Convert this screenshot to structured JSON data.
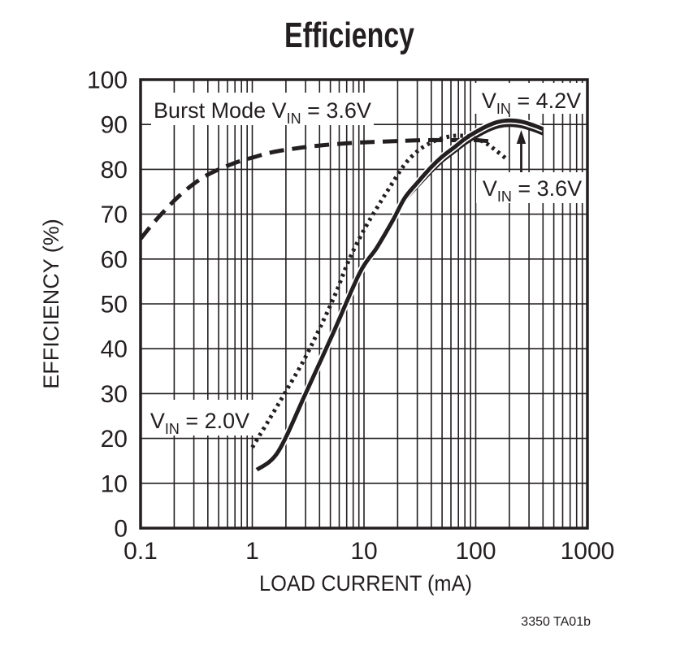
{
  "title": "Efficiency",
  "footer_code": "3350 TA01b",
  "axes": {
    "x": {
      "label": "LOAD CURRENT (mA)",
      "scale": "log",
      "tick_labels": [
        "0.1",
        "1",
        "10",
        "100",
        "1000"
      ],
      "tick_values": [
        0.1,
        1,
        10,
        100,
        1000
      ]
    },
    "y": {
      "label": "EFFICIENCY (%)",
      "tick_values": [
        0,
        10,
        20,
        30,
        40,
        50,
        60,
        70,
        80,
        90,
        100
      ]
    }
  },
  "annotations": {
    "burst_mode": {
      "pre": "Burst Mode V",
      "sub": "IN",
      "post": " = 3.6V"
    },
    "vin_42": {
      "pre": "V",
      "sub": "IN",
      "post": " = 4.2V"
    },
    "vin_36": {
      "pre": "V",
      "sub": "IN",
      "post": " = 3.6V"
    },
    "vin_20": {
      "pre": "V",
      "sub": "IN",
      "post": " = 2.0V"
    }
  },
  "colors": {
    "ink": "#231f20",
    "background": "#ffffff"
  },
  "chart_data": {
    "type": "line",
    "title": "Efficiency",
    "xlabel": "LOAD CURRENT (mA)",
    "ylabel": "EFFICIENCY (%)",
    "xscale": "log",
    "xlim": [
      0.1,
      1000
    ],
    "ylim": [
      0,
      100
    ],
    "grid": "log minor verticals each decade, horizontal every 10%",
    "legend_position": "inline-annotations",
    "series": [
      {
        "name": "Burst Mode VIN = 3.6V",
        "line_style": "dashed",
        "x": [
          0.1,
          0.13,
          0.17,
          0.22,
          0.3,
          0.4,
          0.55,
          0.75,
          1,
          1.5,
          2.5,
          4,
          7,
          12,
          20,
          35,
          60,
          100,
          150
        ],
        "y": [
          64.5,
          68,
          71.2,
          74,
          76.8,
          78.8,
          80.4,
          81.7,
          82.6,
          83.8,
          84.7,
          85.3,
          85.8,
          86.1,
          86.3,
          86.5,
          86.5,
          86.5,
          86.1
        ]
      },
      {
        "name": "VIN = 2.0V",
        "line_style": "dotted",
        "x": [
          1,
          1.4,
          2,
          2.9,
          4,
          5.5,
          7.4,
          10,
          13.5,
          17,
          23,
          30,
          40,
          55,
          70,
          90,
          120,
          150,
          185
        ],
        "y": [
          18,
          24,
          30.5,
          37.5,
          44.5,
          52,
          60,
          66.5,
          72,
          76,
          81,
          84,
          86,
          87.2,
          87.5,
          87.2,
          86,
          84.3,
          82.5
        ]
      },
      {
        "name": "VIN = 4.2V",
        "line_style": "solid",
        "x": [
          1.1,
          1.7,
          3,
          5.3,
          9.2,
          13,
          18,
          23,
          30,
          40,
          50,
          65,
          80,
          100,
          130,
          160,
          200,
          260,
          330,
          400
        ],
        "y": [
          13,
          17,
          30,
          43.5,
          57,
          62.5,
          68.5,
          73.5,
          77,
          80.5,
          82.8,
          85,
          86.8,
          88.3,
          89.8,
          90.6,
          90.9,
          90.6,
          89.8,
          89
        ]
      },
      {
        "name": "VIN = 3.6V",
        "line_style": "solid",
        "x": [
          1.1,
          1.7,
          3,
          5.3,
          9.2,
          13,
          18,
          23,
          30,
          40,
          50,
          65,
          80,
          100,
          130,
          160,
          200,
          260,
          330,
          400
        ],
        "y": [
          13,
          17,
          30,
          43.5,
          57,
          62.5,
          68.2,
          73,
          76.3,
          79.6,
          81.9,
          84.1,
          85.8,
          87.3,
          88.8,
          89.6,
          89.9,
          89.6,
          88.8,
          88
        ]
      }
    ]
  }
}
